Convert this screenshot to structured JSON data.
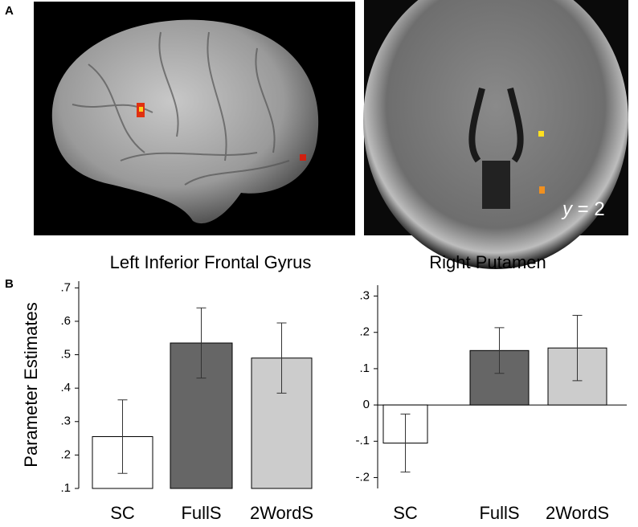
{
  "panel_labels": [
    "A",
    "B"
  ],
  "image_label": {
    "variable": "y",
    "rest": "= 2"
  },
  "chart_data": [
    {
      "type": "bar",
      "title": "Left Inferior Frontal Gyrus",
      "y_label": "Parameter Estimates",
      "categories": [
        "SC",
        "FullS",
        "2WordS"
      ],
      "values": [
        0.255,
        0.535,
        0.49
      ],
      "errors": [
        0.11,
        0.105,
        0.105
      ],
      "colors": [
        "#ffffff",
        "#666666",
        "#cccccc"
      ],
      "ylim": [
        0.1,
        0.72
      ],
      "yticks": [
        {
          "value": 0.1,
          "label": ".1"
        },
        {
          "value": 0.2,
          "label": ".2"
        },
        {
          "value": 0.3,
          "label": ".3"
        },
        {
          "value": 0.4,
          "label": ".4"
        },
        {
          "value": 0.5,
          "label": ".5"
        },
        {
          "value": 0.6,
          "label": ".6"
        },
        {
          "value": 0.7,
          "label": ".7"
        }
      ]
    },
    {
      "type": "bar",
      "title": "Right Putamen",
      "categories": [
        "SC",
        "FullS",
        "2WordS"
      ],
      "values": [
        -0.105,
        0.15,
        0.157
      ],
      "errors": [
        0.08,
        0.063,
        0.09
      ],
      "colors": [
        "#ffffff",
        "#666666",
        "#cccccc"
      ],
      "ylim": [
        -0.23,
        0.33
      ],
      "yticks": [
        {
          "value": -0.2,
          "label": "-.2"
        },
        {
          "value": -0.1,
          "label": "-.1"
        },
        0,
        {
          "value": 0.1,
          "label": ".1"
        },
        {
          "value": 0.2,
          "label": ".2"
        },
        {
          "value": 0.3,
          "label": ".3"
        }
      ]
    }
  ]
}
